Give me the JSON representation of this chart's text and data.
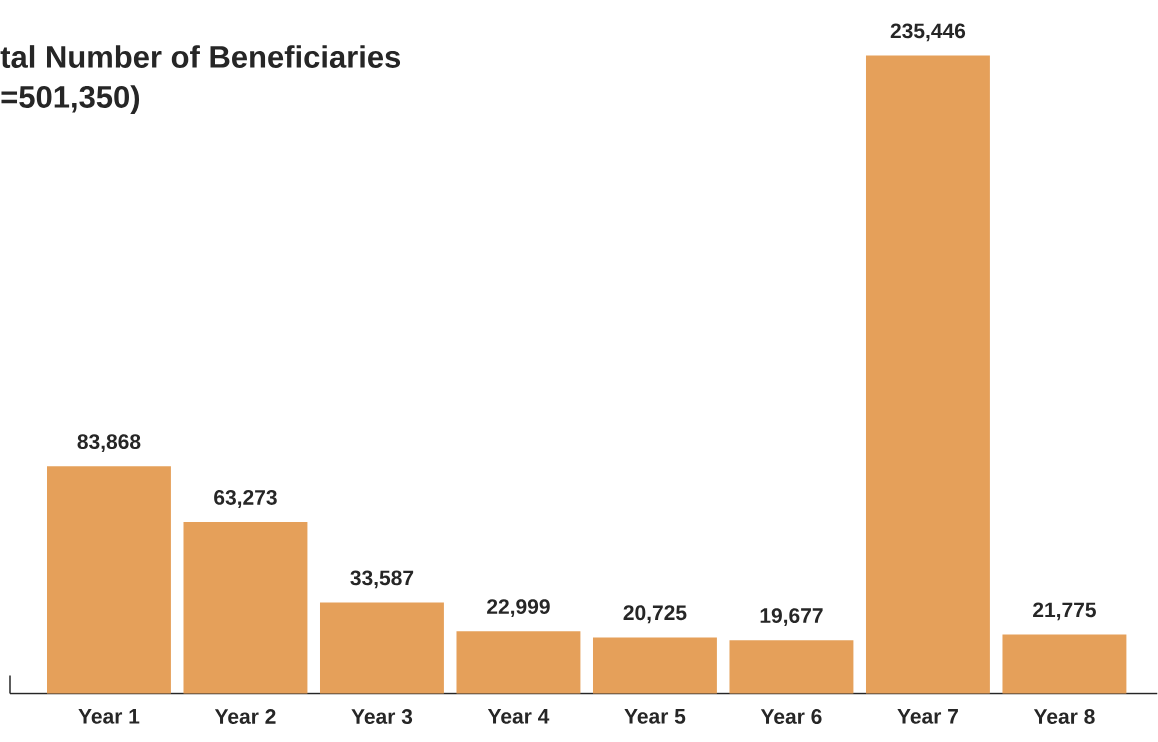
{
  "chart_data": {
    "type": "bar",
    "title": "tal Number of Beneficiaries",
    "subtitle": "=501,350)",
    "categories": [
      "Year 1",
      "Year 2",
      "Year 3",
      "Year 4",
      "Year 5",
      "Year 6",
      "Year 7",
      "Year 8"
    ],
    "values": [
      83868,
      63273,
      33587,
      22999,
      20725,
      19677,
      235446,
      21775
    ],
    "value_labels": [
      "83,868",
      "63,273",
      "33,587",
      "22,999",
      "20,725",
      "19,677",
      "235,446",
      "21,775"
    ],
    "color": "#e5a05a",
    "tick_labels": "x"
  }
}
